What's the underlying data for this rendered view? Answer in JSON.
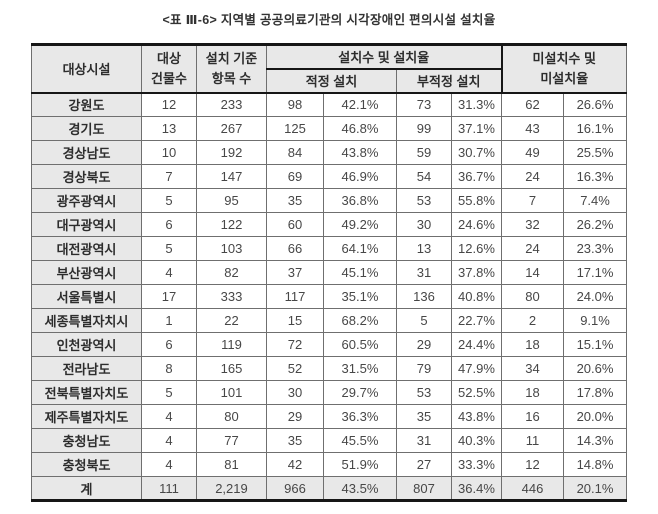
{
  "title": "<표 Ⅲ-6> 지역별 공공의료기관의 시각장애인 편의시설 설치율",
  "colors": {
    "cell_shade": "#e8e8e8",
    "border_heavy": "#161616",
    "border_light": "#6f6f6f"
  },
  "table": {
    "headers": {
      "facility": "대상시설",
      "buildings_line1": "대상",
      "buildings_line2": "건물수",
      "criteria_line1": "설치 기준",
      "criteria_line2": "항목 수",
      "installed_group": "설치수 및 설치율",
      "proper": "적정 설치",
      "improper": "부적정 설치",
      "not_installed_line1": "미설치수 및",
      "not_installed_line2": "미설치율"
    },
    "rows": [
      {
        "region": "강원도",
        "buildings": "12",
        "items": "233",
        "proper_n": "98",
        "proper_pct": "42.1%",
        "improper_n": "73",
        "improper_pct": "31.3%",
        "none_n": "62",
        "none_pct": "26.6%"
      },
      {
        "region": "경기도",
        "buildings": "13",
        "items": "267",
        "proper_n": "125",
        "proper_pct": "46.8%",
        "improper_n": "99",
        "improper_pct": "37.1%",
        "none_n": "43",
        "none_pct": "16.1%"
      },
      {
        "region": "경상남도",
        "buildings": "10",
        "items": "192",
        "proper_n": "84",
        "proper_pct": "43.8%",
        "improper_n": "59",
        "improper_pct": "30.7%",
        "none_n": "49",
        "none_pct": "25.5%"
      },
      {
        "region": "경상북도",
        "buildings": "7",
        "items": "147",
        "proper_n": "69",
        "proper_pct": "46.9%",
        "improper_n": "54",
        "improper_pct": "36.7%",
        "none_n": "24",
        "none_pct": "16.3%"
      },
      {
        "region": "광주광역시",
        "buildings": "5",
        "items": "95",
        "proper_n": "35",
        "proper_pct": "36.8%",
        "improper_n": "53",
        "improper_pct": "55.8%",
        "none_n": "7",
        "none_pct": "7.4%"
      },
      {
        "region": "대구광역시",
        "buildings": "6",
        "items": "122",
        "proper_n": "60",
        "proper_pct": "49.2%",
        "improper_n": "30",
        "improper_pct": "24.6%",
        "none_n": "32",
        "none_pct": "26.2%"
      },
      {
        "region": "대전광역시",
        "buildings": "5",
        "items": "103",
        "proper_n": "66",
        "proper_pct": "64.1%",
        "improper_n": "13",
        "improper_pct": "12.6%",
        "none_n": "24",
        "none_pct": "23.3%"
      },
      {
        "region": "부산광역시",
        "buildings": "4",
        "items": "82",
        "proper_n": "37",
        "proper_pct": "45.1%",
        "improper_n": "31",
        "improper_pct": "37.8%",
        "none_n": "14",
        "none_pct": "17.1%"
      },
      {
        "region": "서울특별시",
        "buildings": "17",
        "items": "333",
        "proper_n": "117",
        "proper_pct": "35.1%",
        "improper_n": "136",
        "improper_pct": "40.8%",
        "none_n": "80",
        "none_pct": "24.0%"
      },
      {
        "region": "세종특별자치시",
        "buildings": "1",
        "items": "22",
        "proper_n": "15",
        "proper_pct": "68.2%",
        "improper_n": "5",
        "improper_pct": "22.7%",
        "none_n": "2",
        "none_pct": "9.1%"
      },
      {
        "region": "인천광역시",
        "buildings": "6",
        "items": "119",
        "proper_n": "72",
        "proper_pct": "60.5%",
        "improper_n": "29",
        "improper_pct": "24.4%",
        "none_n": "18",
        "none_pct": "15.1%"
      },
      {
        "region": "전라남도",
        "buildings": "8",
        "items": "165",
        "proper_n": "52",
        "proper_pct": "31.5%",
        "improper_n": "79",
        "improper_pct": "47.9%",
        "none_n": "34",
        "none_pct": "20.6%"
      },
      {
        "region": "전북특별자치도",
        "buildings": "5",
        "items": "101",
        "proper_n": "30",
        "proper_pct": "29.7%",
        "improper_n": "53",
        "improper_pct": "52.5%",
        "none_n": "18",
        "none_pct": "17.8%"
      },
      {
        "region": "제주특별자치도",
        "buildings": "4",
        "items": "80",
        "proper_n": "29",
        "proper_pct": "36.3%",
        "improper_n": "35",
        "improper_pct": "43.8%",
        "none_n": "16",
        "none_pct": "20.0%"
      },
      {
        "region": "충청남도",
        "buildings": "4",
        "items": "77",
        "proper_n": "35",
        "proper_pct": "45.5%",
        "improper_n": "31",
        "improper_pct": "40.3%",
        "none_n": "11",
        "none_pct": "14.3%"
      },
      {
        "region": "충청북도",
        "buildings": "4",
        "items": "81",
        "proper_n": "42",
        "proper_pct": "51.9%",
        "improper_n": "27",
        "improper_pct": "33.3%",
        "none_n": "12",
        "none_pct": "14.8%"
      }
    ],
    "total": {
      "region": "계",
      "buildings": "111",
      "items": "2,219",
      "proper_n": "966",
      "proper_pct": "43.5%",
      "improper_n": "807",
      "improper_pct": "36.4%",
      "none_n": "446",
      "none_pct": "20.1%"
    }
  }
}
